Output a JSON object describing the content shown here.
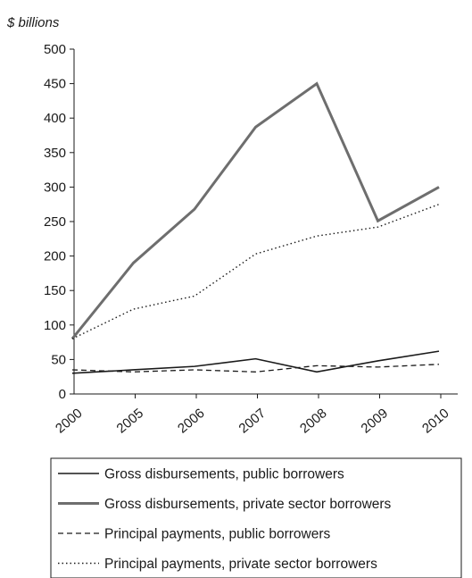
{
  "chart_data": {
    "type": "line",
    "unit_label": "$ billions",
    "xlabel": "",
    "ylabel": "",
    "categories": [
      "2000",
      "2005",
      "2006",
      "2007",
      "2008",
      "2009",
      "2010"
    ],
    "ylim": [
      0,
      500
    ],
    "yticks": [
      0,
      50,
      100,
      150,
      200,
      250,
      300,
      350,
      400,
      450,
      500
    ],
    "grid": false,
    "legend_position": "bottom",
    "series": [
      {
        "name": "Gross disbursements, public borrowers",
        "values": [
          30,
          35,
          40,
          51,
          32,
          48,
          62
        ],
        "color": "#1a1a1a",
        "style": "solid-thin"
      },
      {
        "name": "Gross disbursements, private sector borrowers",
        "values": [
          80,
          190,
          268,
          387,
          450,
          251,
          300
        ],
        "color": "#6e6e6e",
        "style": "solid-thick"
      },
      {
        "name": "Principal payments, public borrowers",
        "values": [
          35,
          32,
          35,
          32,
          41,
          39,
          43
        ],
        "color": "#1a1a1a",
        "style": "dashed"
      },
      {
        "name": "Principal payments, private sector borrowers",
        "values": [
          80,
          123,
          142,
          203,
          229,
          242,
          275
        ],
        "color": "#1a1a1a",
        "style": "dotted"
      }
    ]
  }
}
